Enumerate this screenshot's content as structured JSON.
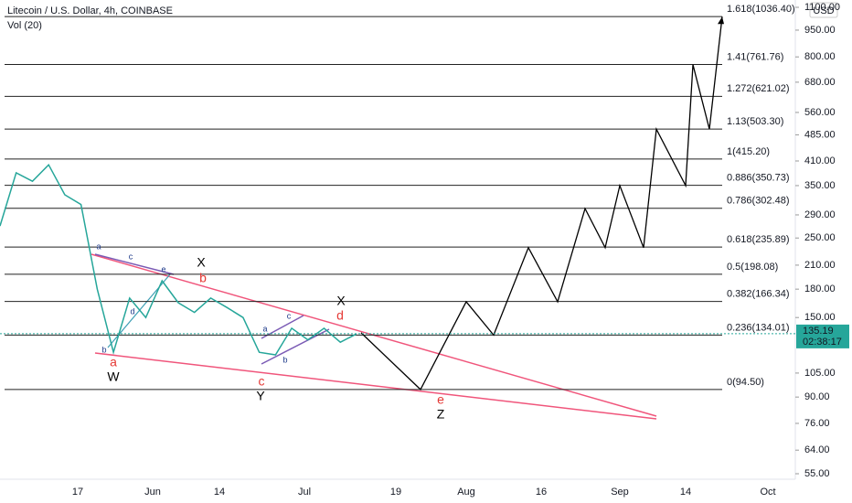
{
  "chart_data": {
    "type": "line",
    "title": "Litecoin / U.S. Dollar, 4h, COINBASE",
    "subtitle": "Vol (20)",
    "currency": "USD",
    "log_scale": true,
    "ylim": [
      55,
      1100
    ],
    "yticks": [
      {
        "value": 1100,
        "label": "1100.00"
      },
      {
        "value": 950,
        "label": "950.00"
      },
      {
        "value": 800,
        "label": "800.00"
      },
      {
        "value": 680,
        "label": "680.00"
      },
      {
        "value": 560,
        "label": "560.00"
      },
      {
        "value": 485,
        "label": "485.00"
      },
      {
        "value": 410,
        "label": "410.00"
      },
      {
        "value": 350,
        "label": "350.00"
      },
      {
        "value": 290,
        "label": "290.00"
      },
      {
        "value": 250,
        "label": "250.00"
      },
      {
        "value": 210,
        "label": "210.00"
      },
      {
        "value": 180,
        "label": "180.00"
      },
      {
        "value": 150,
        "label": "150.00"
      },
      {
        "value": 105,
        "label": "105.00"
      },
      {
        "value": 90,
        "label": "90.00"
      },
      {
        "value": 76,
        "label": "76.00"
      },
      {
        "value": 64,
        "label": "64.00"
      },
      {
        "value": 55,
        "label": "55.00"
      }
    ],
    "categories": [
      "17",
      "Jun",
      "14",
      "Jul",
      "19",
      "Aug",
      "16",
      "Sep",
      "14",
      "Oct"
    ],
    "price": [
      270,
      380,
      360,
      400,
      330,
      310,
      180,
      120,
      170,
      150,
      190,
      165,
      155,
      170,
      160,
      150,
      120,
      118,
      140,
      130,
      140,
      128,
      135
    ],
    "projection": [
      136,
      94.5,
      166,
      134,
      235,
      166,
      302,
      235,
      350,
      235,
      503,
      350,
      761,
      503,
      1036
    ],
    "fib_levels": [
      {
        "value": 1036.4,
        "label": "1.618(1036.40)"
      },
      {
        "value": 761.76,
        "label": "1.41(761.76)"
      },
      {
        "value": 621.02,
        "label": "1.272(621.02)"
      },
      {
        "value": 503.3,
        "label": "1.13(503.30)"
      },
      {
        "value": 415.2,
        "label": "1(415.20)"
      },
      {
        "value": 350.73,
        "label": "0.886(350.73)"
      },
      {
        "value": 302.48,
        "label": "0.786(302.48)"
      },
      {
        "value": 235.89,
        "label": "0.618(235.89)"
      },
      {
        "value": 198.08,
        "label": "0.5(198.08)"
      },
      {
        "value": 166.34,
        "label": "0.382(166.34)"
      },
      {
        "value": 134.01,
        "label": "0.236(134.01)"
      },
      {
        "value": 94.5,
        "label": "0(94.50)"
      }
    ],
    "last_price": 135.19,
    "countdown": "02:38:17",
    "wave_labels": [
      "a",
      "W",
      "b",
      "X",
      "c",
      "Y",
      "d",
      "X",
      "e",
      "Z"
    ],
    "sub_wave_labels": [
      "a",
      "b",
      "c",
      "d",
      "e",
      "a",
      "c",
      "b"
    ]
  }
}
